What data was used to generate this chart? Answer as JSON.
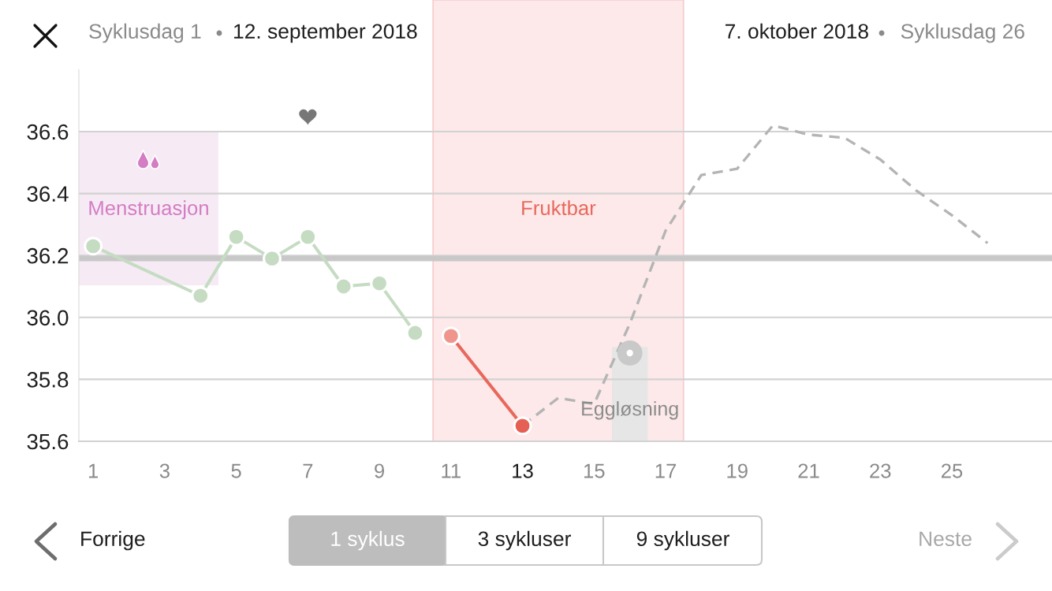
{
  "chart_data": {
    "type": "line",
    "annotations": [
      "Syklusdag 1",
      "12. september 2018",
      "7. oktober 2018",
      "Syklusdag 26",
      "Forrige",
      "1 syklus",
      "3 sykluser",
      "9 sykluser",
      "Neste"
    ],
    "xlim": [
      0.6,
      27.8
    ],
    "xticks": [
      1,
      3,
      5,
      7,
      9,
      11,
      13,
      15,
      17,
      19,
      21,
      23,
      25
    ],
    "ylim": [
      35.6,
      36.8
    ],
    "yticks": [
      35.6,
      35.8,
      {
        "value": 36,
        "label": "36.0"
      },
      36.2,
      36.4,
      36.6
    ],
    "grid": "y",
    "series": [
      {
        "x": [
          1,
          4,
          5,
          6,
          7,
          8,
          9,
          10
        ],
        "values": [
          36.23,
          36.07,
          36.26,
          36.19,
          36.26,
          36.1,
          36.11,
          35.95
        ],
        "color": "#c5dcc3",
        "marker": "circle",
        "line_style": "solid"
      },
      {
        "x": [
          11,
          13
        ],
        "values": [
          35.94,
          35.65
        ],
        "color": "#e8685c",
        "colors": [
          "#f0958d",
          "#e55f55"
        ],
        "marker": "circle",
        "line_style": "solid"
      },
      {
        "x": [
          13,
          14,
          15,
          16,
          17,
          18,
          19,
          20,
          21,
          22,
          23,
          24,
          25,
          26
        ],
        "values": [
          35.65,
          35.74,
          35.72,
          35.98,
          36.28,
          36.46,
          36.48,
          36.62,
          36.59,
          36.58,
          36.51,
          36.41,
          36.33,
          36.24
        ],
        "color": "#b4b4b4",
        "marker": "none",
        "line_style": "dashed"
      }
    ],
    "ref_lines": [
      {
        "axis": "y",
        "value": 36.19,
        "color": "#c8c8c8"
      }
    ],
    "bands": [
      {
        "axis": "x",
        "from": 0.6,
        "to": 4.5,
        "label": "Menstruasjon",
        "color": "#f6ebf4"
      },
      {
        "axis": "x",
        "from": 10.5,
        "to": 17.5,
        "label": "Fruktbar",
        "color": "#fde9e9"
      },
      {
        "axis": "x",
        "from": 15.5,
        "to": 16.5,
        "label": "Eggløsning",
        "color": "#e6e6e6"
      }
    ]
  }
}
